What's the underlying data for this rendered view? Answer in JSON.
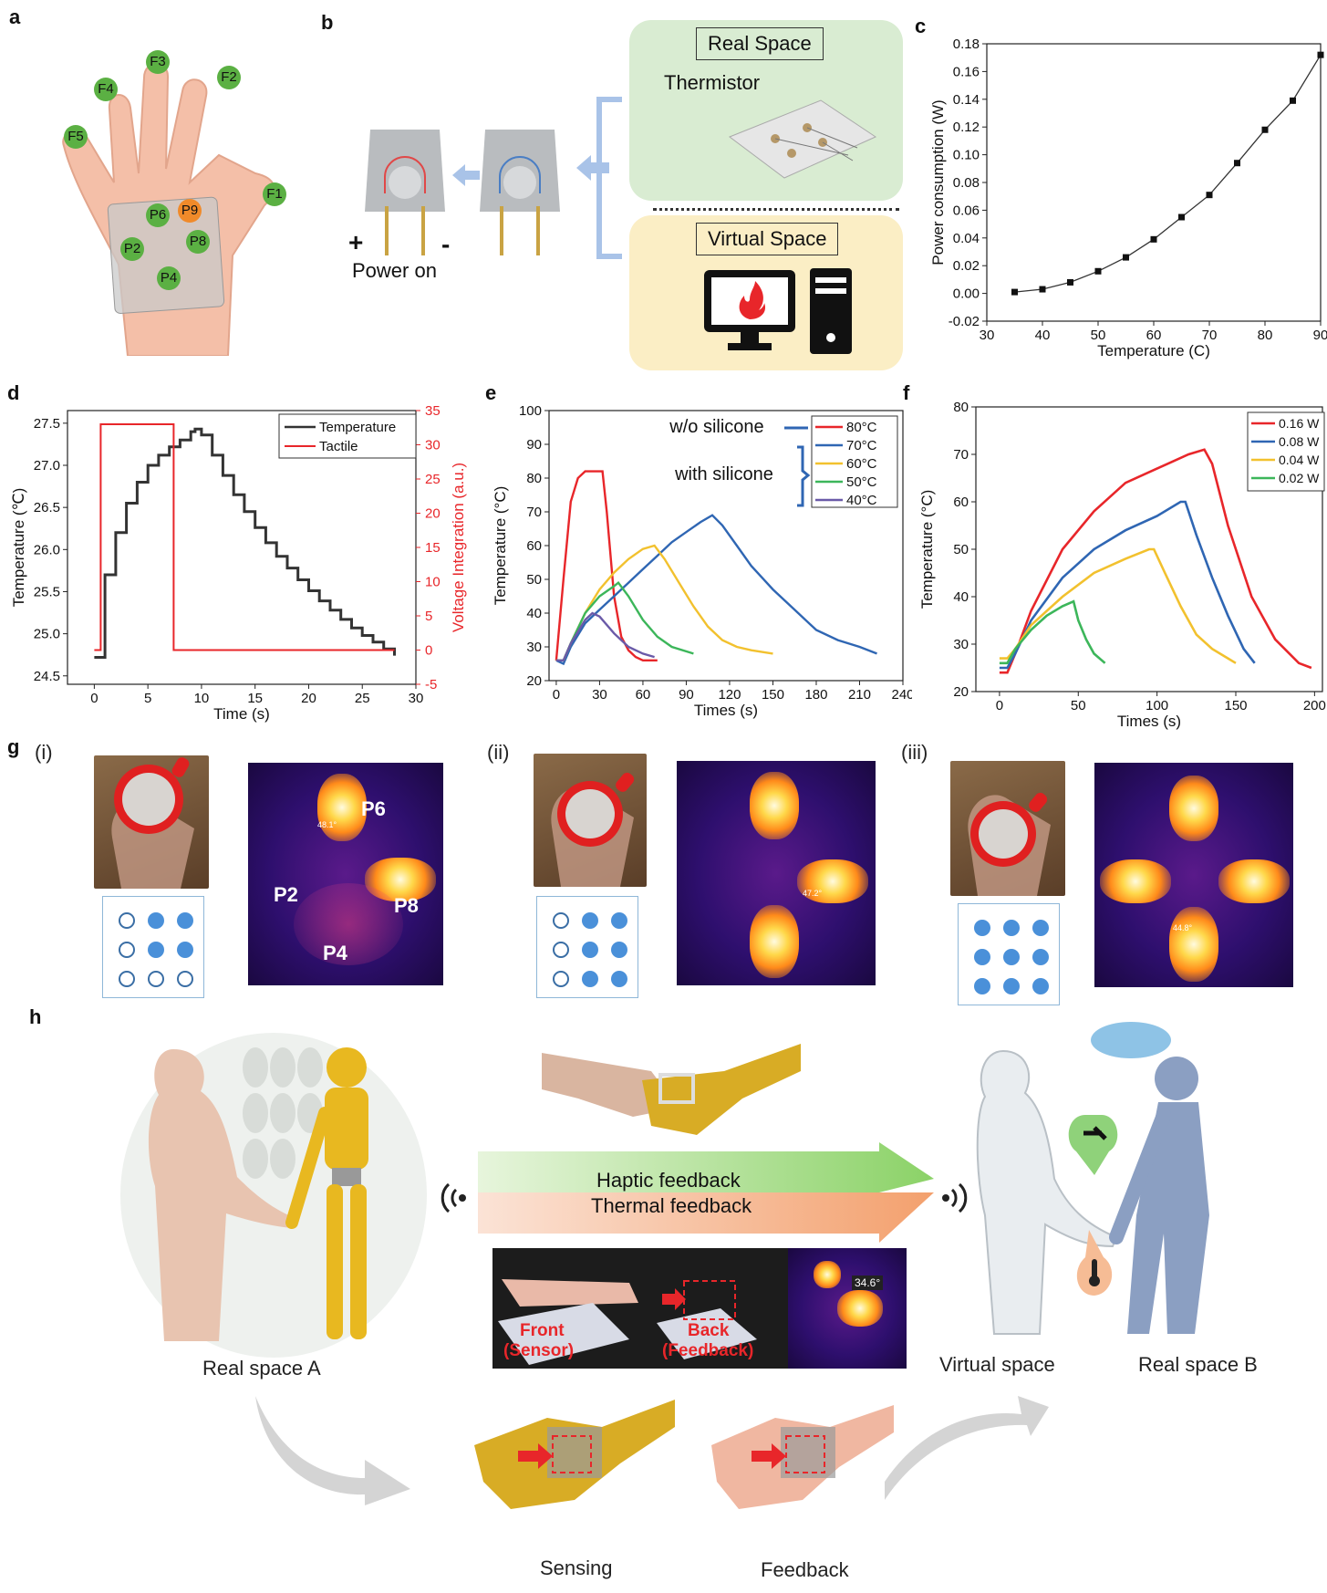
{
  "panel_labels": {
    "a": "a",
    "b": "b",
    "c": "c",
    "d": "d",
    "e": "e",
    "f": "f",
    "g": "g",
    "h": "h"
  },
  "panel_a": {
    "sensors": [
      "F1",
      "F2",
      "F3",
      "F4",
      "F5",
      "P6",
      "P9",
      "P2",
      "P8",
      "P4"
    ]
  },
  "panel_b": {
    "real_space": "Real Space",
    "thermistor": "Thermistor",
    "virtual_space": "Virtual Space",
    "plus": "+",
    "minus": "-",
    "power_on": "Power on"
  },
  "panel_g": {
    "sub_i": "(i)",
    "sub_ii": "(ii)",
    "sub_iii": "(iii)",
    "labels_i": [
      "P6",
      "P2",
      "P8",
      "P4"
    ],
    "temp_i": "48.1°",
    "temp_ii": "47.2°",
    "temp_iii": "44.8°",
    "grid_i": [
      0,
      1,
      1,
      0,
      1,
      1,
      0,
      0,
      0
    ],
    "grid_ii": [
      0,
      1,
      1,
      0,
      1,
      1,
      0,
      1,
      1
    ],
    "grid_iii": [
      1,
      1,
      1,
      1,
      1,
      1,
      1,
      1,
      1
    ]
  },
  "panel_h": {
    "haptic": "Haptic feedback",
    "thermal": "Thermal feedback",
    "front": "Front",
    "sensor": "(Sensor)",
    "back": "Back",
    "feedback_paren": "(Feedback)",
    "temp_readout": "34.6°",
    "real_space_a": "Real space A",
    "virtual_space": "Virtual space",
    "real_space_b": "Real space B",
    "sensing": "Sensing",
    "feedback": "Feedback"
  },
  "colors": {
    "red": "#e8262a",
    "blue": "#2f66b3",
    "yellow": "#f2c12e",
    "green": "#3cb65a",
    "purple": "#6a5aa8",
    "real_space_bg": "#d9ecd2",
    "virtual_space_bg": "#fbeec5"
  },
  "chart_data": [
    {
      "id": "c",
      "type": "line",
      "xlabel": "Temperature (C)",
      "ylabel": "Power consumption (W)",
      "xlim": [
        30,
        90
      ],
      "ylim": [
        -0.02,
        0.18
      ],
      "xticks": [
        "30",
        "40",
        "50",
        "60",
        "70",
        "80",
        "90"
      ],
      "yticks": [
        "-0.02",
        "0.00",
        "0.02",
        "0.04",
        "0.06",
        "0.08",
        "0.10",
        "0.12",
        "0.14",
        "0.16",
        "0.18"
      ],
      "x": [
        35,
        40,
        45,
        50,
        55,
        60,
        65,
        70,
        75,
        80,
        85,
        90
      ],
      "y": [
        0.001,
        0.003,
        0.008,
        0.016,
        0.026,
        0.039,
        0.055,
        0.071,
        0.094,
        0.118,
        0.139,
        0.172
      ]
    },
    {
      "id": "d",
      "type": "line",
      "xlabel": "Time (s)",
      "ylabel": "Temperature (℃)",
      "y2label": "Voltage Integration (a.u.)",
      "xlim": [
        -2.5,
        30
      ],
      "ylim": [
        24.4,
        27.65
      ],
      "y2lim": [
        -5,
        35
      ],
      "xticks": [
        "0",
        "5",
        "10",
        "15",
        "20",
        "25",
        "30"
      ],
      "yticks": [
        "24.5",
        "25.0",
        "25.5",
        "26.0",
        "26.5",
        "27.0",
        "27.5"
      ],
      "y2ticks": [
        "-5",
        "0",
        "5",
        "10",
        "15",
        "20",
        "25",
        "30",
        "35"
      ],
      "legend": [
        "Temperature",
        "Tactile"
      ],
      "legend_position": "top-right",
      "series": [
        {
          "name": "Temperature",
          "axis": "left",
          "x": [
            0,
            1,
            2,
            3,
            4,
            5,
            6,
            7,
            8,
            9,
            9.4,
            10,
            11,
            12,
            13,
            14,
            15,
            16,
            17,
            18,
            19,
            20,
            21,
            22,
            23,
            24,
            25,
            26,
            27,
            28
          ],
          "values": [
            24.72,
            25.7,
            26.2,
            26.55,
            26.8,
            27.0,
            27.12,
            27.22,
            27.3,
            27.4,
            27.43,
            27.36,
            27.12,
            26.88,
            26.65,
            26.45,
            26.26,
            26.08,
            25.92,
            25.78,
            25.64,
            25.51,
            25.39,
            25.28,
            25.17,
            25.07,
            24.98,
            24.9,
            24.82,
            24.74
          ]
        },
        {
          "name": "Tactile",
          "axis": "right",
          "x": [
            0,
            0.6,
            0.6,
            7.4,
            7.4,
            28
          ],
          "values": [
            0,
            0,
            33,
            33,
            0,
            0
          ]
        }
      ]
    },
    {
      "id": "e",
      "type": "line",
      "xlabel": "Times (s)",
      "ylabel": "Temperature (°C)",
      "xlim": [
        -5,
        240
      ],
      "ylim": [
        20,
        100
      ],
      "xticks": [
        "0",
        "30",
        "60",
        "90",
        "120",
        "150",
        "180",
        "210",
        "240"
      ],
      "yticks": [
        "20",
        "30",
        "40",
        "50",
        "60",
        "70",
        "80",
        "90",
        "100"
      ],
      "legend": [
        "80°C",
        "70°C",
        "60°C",
        "50°C",
        "40°C"
      ],
      "annotations": [
        "w/o silicone",
        "with silicone"
      ],
      "series": [
        {
          "name": "80°C",
          "x": [
            0,
            5,
            10,
            15,
            20,
            25,
            32,
            35,
            40,
            45,
            50,
            55,
            60,
            70
          ],
          "values": [
            26,
            50,
            73,
            80,
            82,
            82,
            82,
            70,
            45,
            33,
            29,
            27,
            26,
            26
          ]
        },
        {
          "name": "70°C",
          "x": [
            0,
            5,
            10,
            20,
            30,
            40,
            50,
            60,
            70,
            80,
            90,
            100,
            108,
            115,
            125,
            135,
            150,
            165,
            180,
            195,
            210,
            222
          ],
          "values": [
            26,
            25,
            30,
            37,
            41,
            45,
            49,
            53,
            57,
            61,
            64,
            67,
            69,
            66,
            60,
            54,
            47,
            41,
            35,
            32,
            30,
            28
          ]
        },
        {
          "name": "60°C",
          "x": [
            0,
            5,
            10,
            20,
            30,
            40,
            50,
            60,
            68,
            75,
            85,
            95,
            105,
            115,
            125,
            135,
            150
          ],
          "values": [
            26,
            26,
            31,
            40,
            47,
            52,
            56,
            59,
            60,
            56,
            49,
            42,
            36,
            32,
            30,
            29,
            28
          ]
        },
        {
          "name": "50°C",
          "x": [
            0,
            5,
            10,
            20,
            30,
            40,
            43,
            50,
            60,
            70,
            80,
            95
          ],
          "values": [
            26,
            26,
            31,
            40,
            45,
            48,
            49,
            45,
            38,
            33,
            30,
            28
          ]
        },
        {
          "name": "40°C",
          "x": [
            0,
            5,
            10,
            20,
            25,
            30,
            40,
            50,
            60,
            68
          ],
          "values": [
            26,
            26,
            31,
            38,
            40,
            39,
            34,
            30,
            28,
            27
          ]
        }
      ]
    },
    {
      "id": "f",
      "type": "line",
      "xlabel": "Times (s)",
      "ylabel": "Temperature (°C)",
      "xlim": [
        -15,
        205
      ],
      "ylim": [
        20,
        80
      ],
      "xticks": [
        "0",
        "50",
        "100",
        "150",
        "200"
      ],
      "yticks": [
        "20",
        "30",
        "40",
        "50",
        "60",
        "70",
        "80"
      ],
      "legend": [
        "0.16 W",
        "0.08 W",
        "0.04 W",
        "0.02 W"
      ],
      "legend_position": "top-right",
      "series": [
        {
          "name": "0.16 W",
          "x": [
            0,
            5,
            10,
            20,
            40,
            60,
            80,
            100,
            120,
            130,
            135,
            145,
            160,
            175,
            190,
            198
          ],
          "values": [
            24,
            24,
            28,
            37,
            50,
            58,
            64,
            67,
            70,
            71,
            68,
            55,
            40,
            31,
            26,
            25
          ]
        },
        {
          "name": "0.08 W",
          "x": [
            0,
            5,
            10,
            20,
            40,
            60,
            80,
            100,
            115,
            118,
            125,
            135,
            145,
            155,
            162
          ],
          "values": [
            25,
            25,
            28,
            35,
            44,
            50,
            54,
            57,
            60,
            60,
            53,
            44,
            36,
            29,
            26
          ]
        },
        {
          "name": "0.04 W",
          "x": [
            0,
            5,
            10,
            20,
            40,
            60,
            80,
            95,
            98,
            105,
            115,
            125,
            135,
            145,
            150
          ],
          "values": [
            27,
            27,
            29,
            34,
            40,
            45,
            48,
            50,
            50,
            45,
            38,
            32,
            29,
            27,
            26
          ]
        },
        {
          "name": "0.02 W",
          "x": [
            0,
            5,
            10,
            20,
            30,
            40,
            47,
            50,
            55,
            60,
            67
          ],
          "values": [
            26,
            26,
            29,
            33,
            36,
            38,
            39,
            35,
            31,
            28,
            26
          ]
        }
      ]
    }
  ]
}
